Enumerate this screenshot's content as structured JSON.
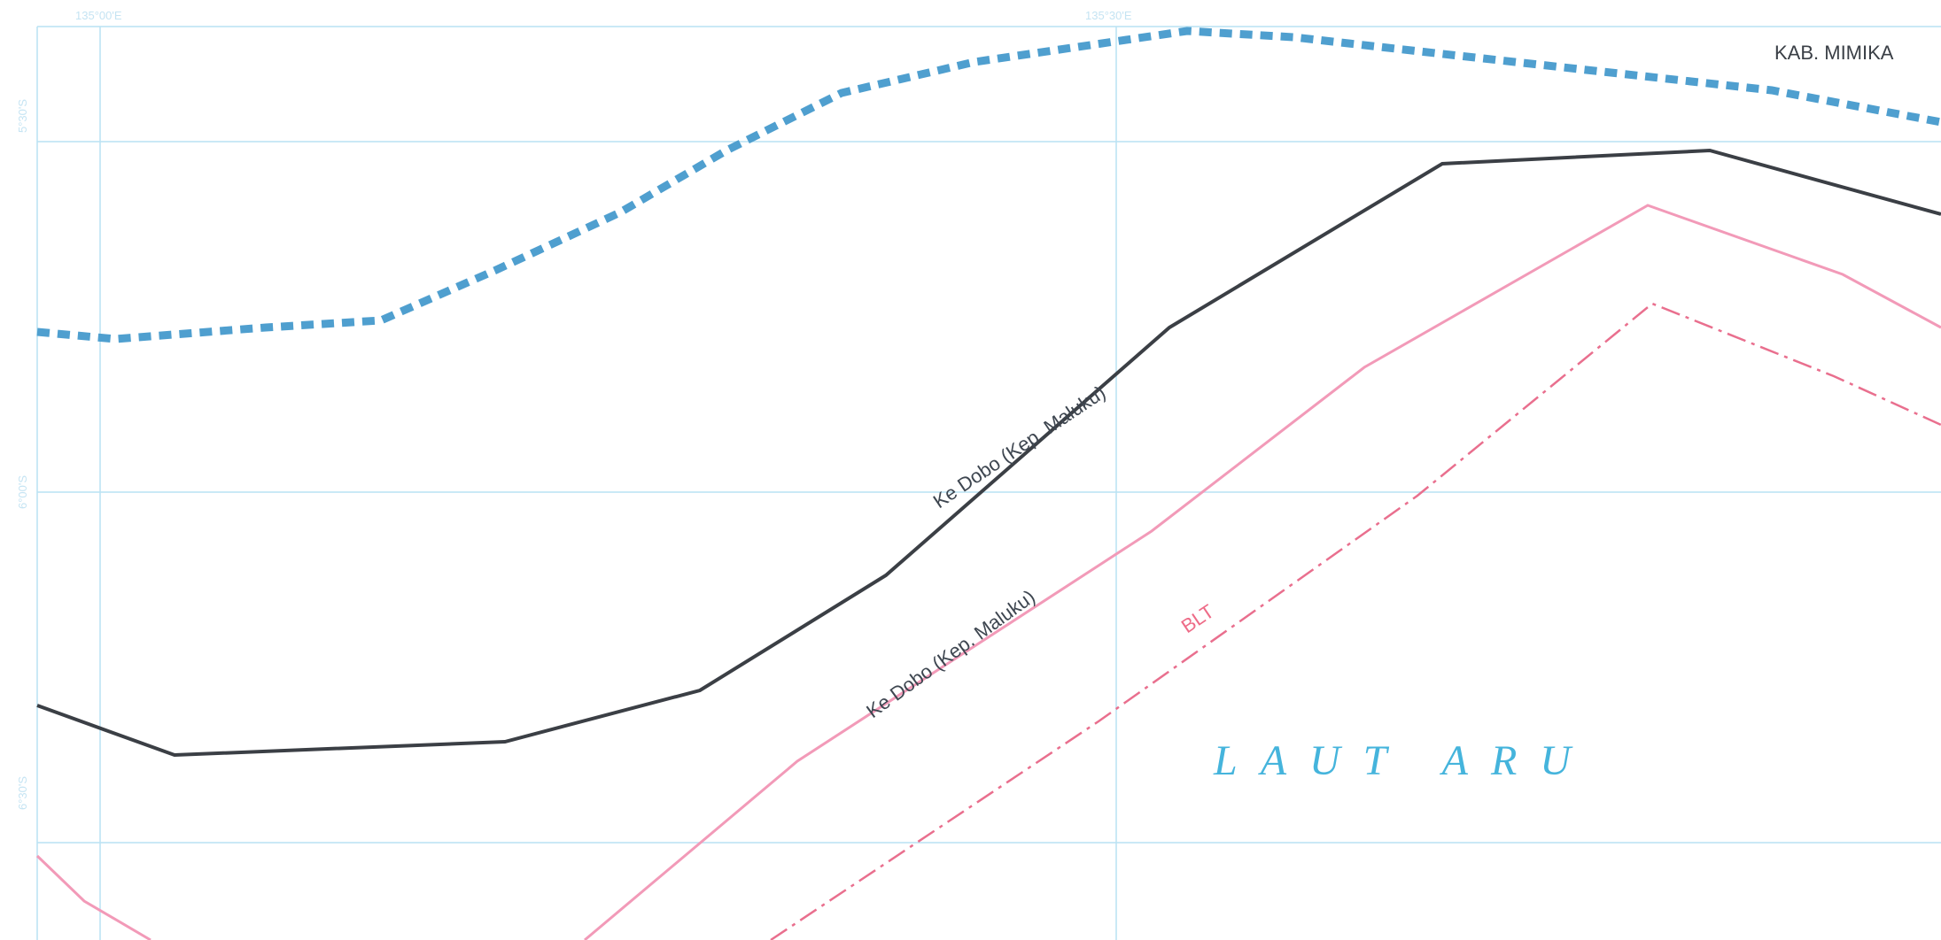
{
  "map": {
    "sea_label": "LAUT ARU",
    "region_label": "KAB. MIMIKA",
    "route_label_black": "Ke Dobo (Kep. Maluku)",
    "route_label_pink": "Ke Dobo (Kep. Maluku)",
    "blt_label": "BLT",
    "grid_ticks_top": [
      "135°00'E",
      "135°30'E"
    ],
    "grid_ticks_left": [
      "5°30'S",
      "6°00'S",
      "6°30'S"
    ]
  },
  "colors": {
    "grid": "#b9e2f3",
    "boundary_dashed": "#4f9fcf",
    "route_black": "#3b3f45",
    "route_pink": "#f29ab8",
    "blt_line": "#e96f8e",
    "sea_text": "#45b4dc"
  }
}
